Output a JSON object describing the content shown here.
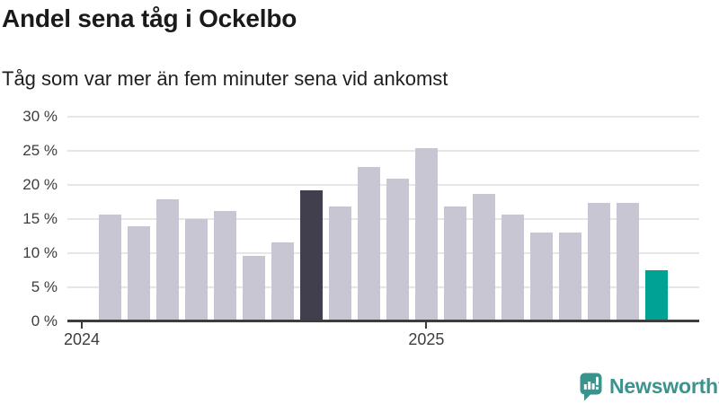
{
  "header": {
    "title": "Andel sena tåg i Ockelbo",
    "subtitle": "Tåg som var mer än fem minuter sena vid ankomst"
  },
  "chart_data": {
    "type": "bar",
    "title": "Andel sena tåg i Ockelbo",
    "subtitle": "Tåg som var mer än fem minuter sena vid ankomst",
    "unit": "%",
    "x": [
      "2024-02",
      "2024-03",
      "2024-04",
      "2024-05",
      "2024-06",
      "2024-07",
      "2024-08",
      "2024-09",
      "2024-10",
      "2024-11",
      "2024-12",
      "2025-01",
      "2025-02",
      "2025-03",
      "2025-04",
      "2025-05",
      "2025-06",
      "2025-07",
      "2025-08",
      "2025-09"
    ],
    "values": [
      15.7,
      14.0,
      17.9,
      15.0,
      16.2,
      9.6,
      11.6,
      19.2,
      16.8,
      22.7,
      20.9,
      25.5,
      16.8,
      18.7,
      15.7,
      13.0,
      13.0,
      17.4,
      17.4,
      7.5
    ],
    "ylim": [
      0,
      30
    ],
    "yticks": [
      {
        "value": 30,
        "label": "30 %"
      },
      {
        "value": 25,
        "label": "25 %"
      },
      {
        "value": 20,
        "label": "20 %"
      },
      {
        "value": 15,
        "label": "15 %"
      },
      {
        "value": 10,
        "label": "10 %"
      },
      {
        "value": 5,
        "label": "5 %"
      },
      {
        "value": 0,
        "label": "0 %"
      }
    ],
    "xticks": [
      {
        "label": "2024",
        "band": 0
      },
      {
        "label": "2025",
        "band": 12
      }
    ],
    "grid": true,
    "legend": null,
    "highlight_indices": {
      "dark": 7,
      "teal": 19
    },
    "colors": {
      "bar_default": "#c9c6d3",
      "bar_highlight_dark": "#413e4e",
      "bar_highlight_current": "#00a296",
      "axis": "#3d3d3d",
      "gridline": "#e6e6e6",
      "tick_label": "#3d3d3d"
    }
  },
  "footer": {
    "brand_label": "Newsworthy",
    "brand_color": "#3a938d",
    "logo_icon": "newsworthy-chart-bubble-icon"
  }
}
